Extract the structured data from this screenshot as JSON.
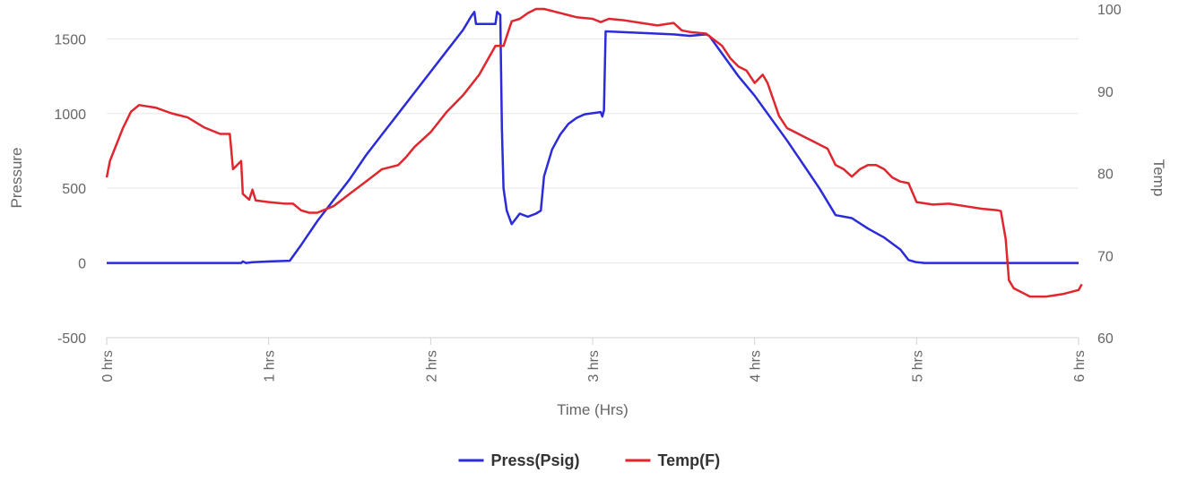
{
  "chart_data": {
    "type": "line",
    "xlabel": "Time (Hrs)",
    "ylabel_left": "Pressure",
    "ylabel_right": "Temp",
    "x_range": [
      0,
      6
    ],
    "x_ticks": [
      {
        "value": 0,
        "label": "0 hrs"
      },
      {
        "value": 1,
        "label": "1 hrs"
      },
      {
        "value": 2,
        "label": "2 hrs"
      },
      {
        "value": 3,
        "label": "3 hrs"
      },
      {
        "value": 4,
        "label": "4 hrs"
      },
      {
        "value": 5,
        "label": "5 hrs"
      },
      {
        "value": 6,
        "label": "6 hrs"
      }
    ],
    "y_left_range": [
      -500,
      1700
    ],
    "y_left_ticks": [
      -500,
      0,
      500,
      1000,
      1500
    ],
    "y_right_range": [
      60,
      100
    ],
    "y_right_ticks": [
      60,
      70,
      80,
      90,
      100
    ],
    "grid": true,
    "legend_position": "bottom-center",
    "series": [
      {
        "name": "Press(Psig)",
        "axis": "left",
        "color": "#2b2bd9",
        "points": [
          [
            0,
            0
          ],
          [
            0.5,
            0
          ],
          [
            0.83,
            0
          ],
          [
            0.84,
            10
          ],
          [
            0.86,
            0
          ],
          [
            0.9,
            5
          ],
          [
            1.0,
            10
          ],
          [
            1.13,
            15
          ],
          [
            1.2,
            120
          ],
          [
            1.3,
            280
          ],
          [
            1.4,
            420
          ],
          [
            1.5,
            560
          ],
          [
            1.6,
            720
          ],
          [
            1.7,
            860
          ],
          [
            1.8,
            1000
          ],
          [
            1.9,
            1140
          ],
          [
            2.0,
            1280
          ],
          [
            2.1,
            1420
          ],
          [
            2.2,
            1560
          ],
          [
            2.25,
            1650
          ],
          [
            2.27,
            1680
          ],
          [
            2.28,
            1600
          ],
          [
            2.4,
            1600
          ],
          [
            2.41,
            1680
          ],
          [
            2.43,
            1660
          ],
          [
            2.44,
            900
          ],
          [
            2.45,
            500
          ],
          [
            2.47,
            350
          ],
          [
            2.5,
            260
          ],
          [
            2.55,
            330
          ],
          [
            2.6,
            310
          ],
          [
            2.65,
            330
          ],
          [
            2.68,
            350
          ],
          [
            2.7,
            580
          ],
          [
            2.75,
            760
          ],
          [
            2.8,
            860
          ],
          [
            2.85,
            930
          ],
          [
            2.9,
            970
          ],
          [
            2.95,
            995
          ],
          [
            3.05,
            1010
          ],
          [
            3.06,
            980
          ],
          [
            3.07,
            1020
          ],
          [
            3.08,
            1550
          ],
          [
            3.3,
            1540
          ],
          [
            3.5,
            1530
          ],
          [
            3.6,
            1520
          ],
          [
            3.7,
            1530
          ],
          [
            3.72,
            1520
          ],
          [
            3.8,
            1400
          ],
          [
            3.9,
            1250
          ],
          [
            4.0,
            1120
          ],
          [
            4.1,
            970
          ],
          [
            4.2,
            820
          ],
          [
            4.3,
            660
          ],
          [
            4.4,
            500
          ],
          [
            4.5,
            320
          ],
          [
            4.6,
            300
          ],
          [
            4.7,
            230
          ],
          [
            4.8,
            170
          ],
          [
            4.9,
            90
          ],
          [
            4.95,
            20
          ],
          [
            5.0,
            5
          ],
          [
            5.05,
            0
          ],
          [
            5.5,
            0
          ],
          [
            6.0,
            0
          ]
        ]
      },
      {
        "name": "Temp(F)",
        "axis": "right",
        "color": "#e0262e",
        "points": [
          [
            0,
            79.5
          ],
          [
            0.02,
            81.5
          ],
          [
            0.05,
            83
          ],
          [
            0.1,
            85.5
          ],
          [
            0.15,
            87.5
          ],
          [
            0.2,
            88.3
          ],
          [
            0.3,
            88
          ],
          [
            0.4,
            87.3
          ],
          [
            0.5,
            86.8
          ],
          [
            0.6,
            85.6
          ],
          [
            0.7,
            84.8
          ],
          [
            0.76,
            84.8
          ],
          [
            0.78,
            80.5
          ],
          [
            0.83,
            81.5
          ],
          [
            0.84,
            77.5
          ],
          [
            0.88,
            76.8
          ],
          [
            0.9,
            78
          ],
          [
            0.92,
            76.7
          ],
          [
            1.0,
            76.5
          ],
          [
            1.1,
            76.3
          ],
          [
            1.15,
            76.3
          ],
          [
            1.2,
            75.5
          ],
          [
            1.25,
            75.2
          ],
          [
            1.3,
            75.2
          ],
          [
            1.4,
            76
          ],
          [
            1.5,
            77.5
          ],
          [
            1.6,
            79
          ],
          [
            1.7,
            80.5
          ],
          [
            1.8,
            81
          ],
          [
            1.85,
            82
          ],
          [
            1.9,
            83.2
          ],
          [
            2.0,
            85
          ],
          [
            2.1,
            87.5
          ],
          [
            2.2,
            89.5
          ],
          [
            2.3,
            92
          ],
          [
            2.4,
            95.5
          ],
          [
            2.45,
            95.5
          ],
          [
            2.5,
            98.5
          ],
          [
            2.55,
            98.8
          ],
          [
            2.6,
            99.5
          ],
          [
            2.65,
            100
          ],
          [
            2.7,
            100
          ],
          [
            2.8,
            99.5
          ],
          [
            2.9,
            99
          ],
          [
            3.0,
            98.8
          ],
          [
            3.05,
            98.4
          ],
          [
            3.1,
            98.8
          ],
          [
            3.2,
            98.6
          ],
          [
            3.3,
            98.3
          ],
          [
            3.4,
            98
          ],
          [
            3.5,
            98.3
          ],
          [
            3.55,
            97.4
          ],
          [
            3.6,
            97.2
          ],
          [
            3.7,
            97
          ],
          [
            3.8,
            95.5
          ],
          [
            3.85,
            94
          ],
          [
            3.9,
            93
          ],
          [
            3.95,
            92.5
          ],
          [
            4.0,
            91
          ],
          [
            4.05,
            92
          ],
          [
            4.08,
            91
          ],
          [
            4.15,
            87
          ],
          [
            4.2,
            85.5
          ],
          [
            4.3,
            84.5
          ],
          [
            4.35,
            84
          ],
          [
            4.4,
            83.5
          ],
          [
            4.45,
            83
          ],
          [
            4.5,
            81
          ],
          [
            4.55,
            80.5
          ],
          [
            4.6,
            79.6
          ],
          [
            4.65,
            80.5
          ],
          [
            4.7,
            81
          ],
          [
            4.75,
            81
          ],
          [
            4.8,
            80.5
          ],
          [
            4.85,
            79.5
          ],
          [
            4.9,
            79
          ],
          [
            4.95,
            78.8
          ],
          [
            5.0,
            76.5
          ],
          [
            5.1,
            76.2
          ],
          [
            5.2,
            76.3
          ],
          [
            5.3,
            76
          ],
          [
            5.4,
            75.7
          ],
          [
            5.5,
            75.5
          ],
          [
            5.52,
            75.4
          ],
          [
            5.55,
            72
          ],
          [
            5.57,
            67
          ],
          [
            5.6,
            66
          ],
          [
            5.7,
            65
          ],
          [
            5.8,
            65
          ],
          [
            5.9,
            65.3
          ],
          [
            6.0,
            65.8
          ],
          [
            6.02,
            66.5
          ]
        ]
      }
    ]
  }
}
